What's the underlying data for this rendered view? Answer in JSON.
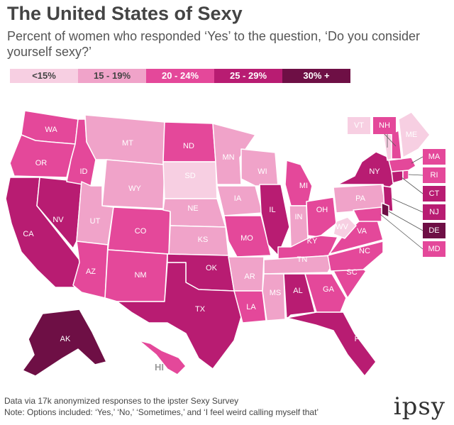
{
  "title": "The United States of Sexy",
  "subtitle": "Percent of women who responded ‘Yes’ to the question, ‘Do you consider yourself sexy?’",
  "legend": [
    {
      "label": "<15%",
      "color": "#f7cfe2",
      "text": "#444444"
    },
    {
      "label": "15 - 19%",
      "color": "#f0a3c9",
      "text": "#444444"
    },
    {
      "label": "20 - 24%",
      "color": "#e4489a",
      "text": "#ffffff"
    },
    {
      "label": "25 - 29%",
      "color": "#b81c72",
      "text": "#ffffff"
    },
    {
      "label": "30% +",
      "color": "#6e0f45",
      "text": "#ffffff"
    }
  ],
  "states": {
    "WA": 2,
    "OR": 2,
    "CA": 3,
    "NV": 3,
    "ID": 2,
    "MT": 1,
    "WY": 1,
    "UT": 1,
    "AZ": 2,
    "CO": 2,
    "NM": 2,
    "ND": 2,
    "SD": 0,
    "NE": 1,
    "KS": 1,
    "OK": 3,
    "TX": 3,
    "MN": 1,
    "IA": 1,
    "MO": 2,
    "AR": 1,
    "LA": 2,
    "WI": 1,
    "IL": 3,
    "MI": 2,
    "IN": 1,
    "OH": 2,
    "KY": 2,
    "TN": 1,
    "MS": 1,
    "AL": 3,
    "GA": 2,
    "FL": 3,
    "SC": 2,
    "NC": 2,
    "VA": 2,
    "WV": 0,
    "PA": 1,
    "NY": 3,
    "AK": 4,
    "HI": 2,
    "ME": 0,
    "VT": 0,
    "NH": 2,
    "MA": 2,
    "RI": 2,
    "CT": 3,
    "NJ": 3,
    "DE": 4,
    "MD": 2
  },
  "hi_label": "HI",
  "footer": {
    "line1": "Data via 17k anonymized responses to the ipster Sexy Survey",
    "line2": "Note: Options included: ‘Yes,’ ‘No,’ ‘Sometimes,’ and ‘I feel weird calling myself that’"
  },
  "logo": "ipsy"
}
